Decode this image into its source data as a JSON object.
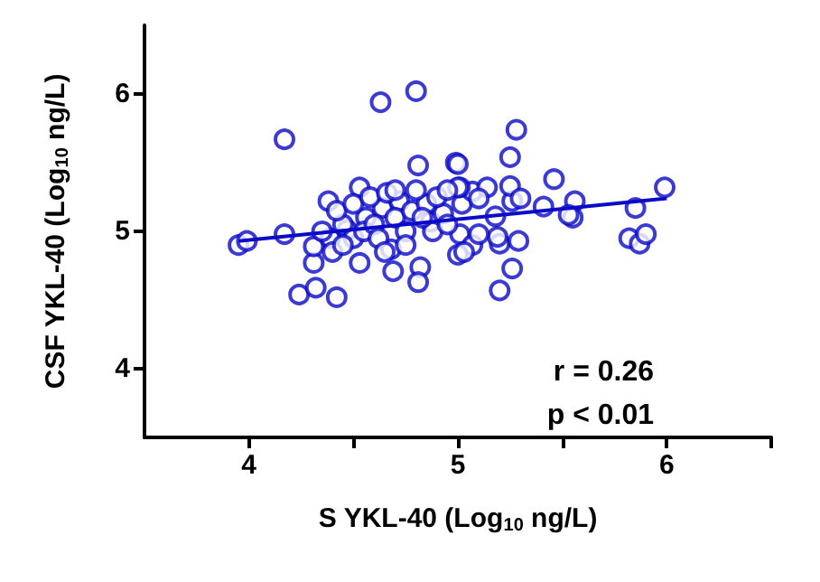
{
  "chart_data": {
    "type": "scatter",
    "xlabel": "S YKL-40 (Log$_{10}$ ng/L)",
    "ylabel": "CSF YKL-40 (Log$_{10}$ ng/L)",
    "xlim": [
      3.5,
      6.5
    ],
    "ylim": [
      3.5,
      6.5
    ],
    "xticks": [
      4,
      {
        "value": 4.5,
        "label": null
      },
      5,
      {
        "value": 5.5,
        "label": null
      },
      6,
      {
        "value": 6.5,
        "label": null
      }
    ],
    "yticks": [
      4,
      5,
      6
    ],
    "grid": false,
    "marker": "circle",
    "annotations": [
      "r = 0.26",
      "p < 0.01"
    ],
    "series": [
      {
        "color": "#0a0ac8",
        "x": [
          3.95,
          3.99,
          4.17,
          4.17,
          4.63,
          4.8,
          4.81,
          4.99,
          4.53,
          4.38,
          4.24,
          4.32,
          4.42,
          4.31,
          4.53,
          4.68,
          4.82,
          4.81,
          4.69,
          4.31,
          4.39,
          4.47,
          4.56,
          4.64,
          4.72,
          4.87,
          4.93,
          5.02,
          5.07,
          5.01,
          5.14,
          5.26,
          5.01,
          5.07,
          5.2,
          5.0,
          5.28,
          5.25,
          5.25,
          5.46,
          5.3,
          5.41,
          5.56,
          5.55,
          5.53,
          5.99,
          5.85,
          5.82,
          5.87,
          5.9,
          5.18,
          5.19,
          5.29,
          5.26,
          5.2,
          5.1,
          5.03,
          5.0,
          5.1,
          5.0,
          4.45,
          4.5,
          4.55,
          4.6,
          4.62,
          4.7,
          4.75,
          4.78,
          4.85,
          4.9,
          4.95,
          4.42,
          4.5,
          4.58,
          4.66,
          4.7,
          4.88,
          4.95,
          4.35,
          4.4,
          4.45,
          4.65,
          4.75,
          4.8,
          4.83
        ],
        "values": [
          4.9,
          4.93,
          4.98,
          5.67,
          5.94,
          6.02,
          5.48,
          5.5,
          5.32,
          5.22,
          4.54,
          4.59,
          4.52,
          4.77,
          4.77,
          4.87,
          4.74,
          4.63,
          4.71,
          4.89,
          4.95,
          5.01,
          5.1,
          5.17,
          5.22,
          5.07,
          5.13,
          5.2,
          5.29,
          5.32,
          5.32,
          5.22,
          4.98,
          4.9,
          4.91,
          4.83,
          5.74,
          5.54,
          5.33,
          5.38,
          5.24,
          5.18,
          5.22,
          5.1,
          5.12,
          5.32,
          5.17,
          4.95,
          4.91,
          4.98,
          5.11,
          4.96,
          4.93,
          4.73,
          4.57,
          4.98,
          4.85,
          5.49,
          5.24,
          5.32,
          5.05,
          4.95,
          5.0,
          5.05,
          4.95,
          5.1,
          5.0,
          5.15,
          5.2,
          5.25,
          5.3,
          5.15,
          5.2,
          5.25,
          5.28,
          5.3,
          5.0,
          5.05,
          5.0,
          4.85,
          4.9,
          4.85,
          4.9,
          5.3,
          5.1
        ]
      },
      {
        "type": "line",
        "color": "#0a0ac8",
        "marker": "none",
        "x": [
          3.95,
          6.0
        ],
        "values": [
          4.93,
          5.24
        ]
      }
    ]
  }
}
